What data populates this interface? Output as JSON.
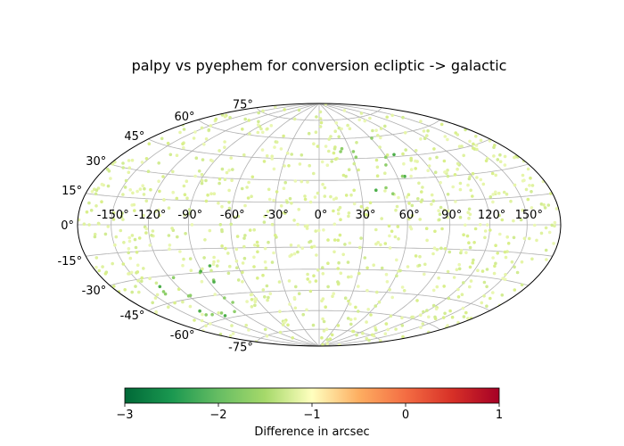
{
  "chart_data": {
    "type": "scatter",
    "projection": "aitoff-hammer",
    "title": "palpy vs pyephem for conversion ecliptic -> galactic",
    "lon_ticks": [
      "-150°",
      "-120°",
      "-90°",
      "-60°",
      "-30°",
      "0°",
      "30°",
      "60°",
      "90°",
      "120°",
      "150°"
    ],
    "lat_ticks": [
      "75°",
      "60°",
      "45°",
      "30°",
      "15°",
      "0°",
      "-15°",
      "-30°",
      "-45°",
      "-60°",
      "-75°"
    ],
    "grid": true,
    "colorbar": {
      "label": "Difference in arcsec",
      "range": [
        -3,
        1
      ],
      "ticks": [
        "−3",
        "−2",
        "−1",
        "0",
        "1"
      ],
      "colormap": "RdYlGn_r"
    },
    "points_summary": "about 900 points uniformly covering the sky, most with differences near -1.3 arcsec (pale green-yellow); darker green (about -2 arcsec) points clustered near lon 30-60, lat 30-60 and near lon -120 to -90, lat -30 to -60"
  }
}
